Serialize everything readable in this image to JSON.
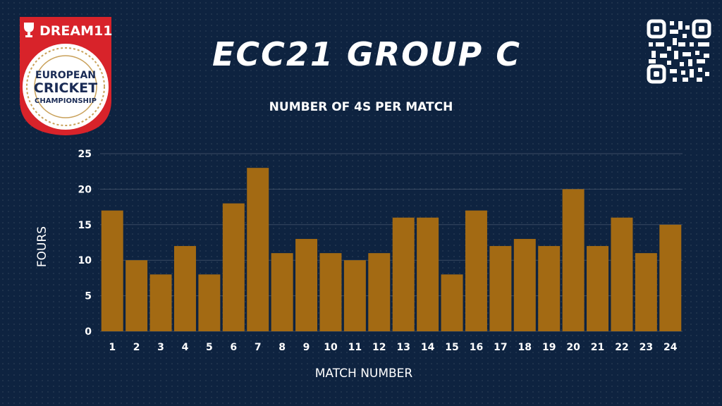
{
  "header": {
    "title": "ECC21 GROUP C",
    "logo_brand_text": "DREAM11",
    "logo_lines": [
      "EUROPEAN",
      "CRICKET",
      "CHAMPIONSHIP"
    ]
  },
  "colors": {
    "background": "#0e2340",
    "bar": "#a36a13",
    "logo_red": "#d8232a",
    "logo_gold": "#c9a15a",
    "text": "#ffffff"
  },
  "chart_data": {
    "type": "bar",
    "title": "NUMBER OF 4S PER MATCH",
    "xlabel": "MATCH NUMBER",
    "ylabel": "FOURS",
    "categories": [
      "1",
      "2",
      "3",
      "4",
      "5",
      "6",
      "7",
      "8",
      "9",
      "10",
      "11",
      "12",
      "13",
      "14",
      "15",
      "16",
      "17",
      "18",
      "19",
      "20",
      "21",
      "22",
      "23",
      "24"
    ],
    "values": [
      17,
      10,
      8,
      12,
      8,
      18,
      23,
      11,
      13,
      11,
      10,
      11,
      16,
      16,
      8,
      17,
      12,
      13,
      12,
      20,
      12,
      16,
      11,
      15
    ],
    "ylim": [
      0,
      25
    ],
    "yticks": [
      0,
      5,
      10,
      15,
      20,
      25
    ],
    "grid": true,
    "legend": "none"
  }
}
